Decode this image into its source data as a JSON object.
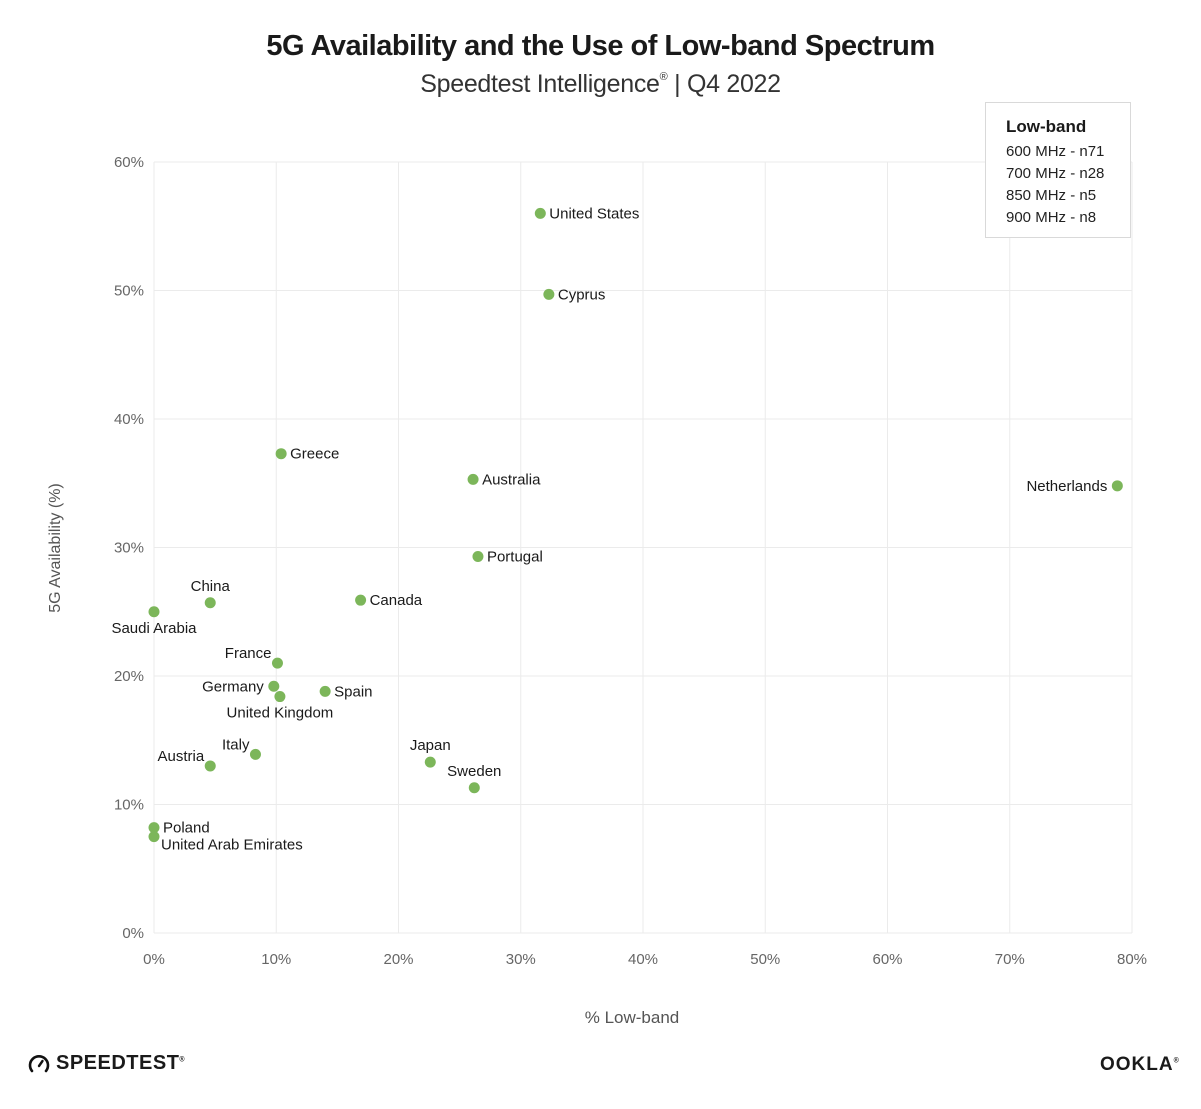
{
  "header": {
    "title": "5G Availability and the Use of Low-band Spectrum",
    "subtitle": "Speedtest Intelligence",
    "subtitle_reg": "®",
    "subtitle_suffix": " | Q4 2022"
  },
  "legend": {
    "title": "Low-band",
    "items": [
      "600 MHz - n71",
      "700 MHz - n28",
      "850 MHz - n5",
      "900 MHz - n8"
    ]
  },
  "footer": {
    "left_brand": "SPEEDTEST",
    "left_reg": "®",
    "right_brand": "OOKLA",
    "right_reg": "®"
  },
  "colors": {
    "point": "#7cb65a",
    "grid": "#ebebeb",
    "tick_text": "#666666",
    "label_text": "#1a1a1a"
  },
  "chart_data": {
    "type": "scatter",
    "title": "5G Availability and the Use of Low-band Spectrum",
    "subtitle": "Speedtest Intelligence® | Q4 2022",
    "xlabel": "% Low-band",
    "ylabel": "5G Availability (%)",
    "xlim": [
      0,
      80
    ],
    "ylim": [
      0,
      60
    ],
    "xticks": [
      0,
      10,
      20,
      30,
      40,
      50,
      60,
      70,
      80
    ],
    "yticks": [
      0,
      10,
      20,
      30,
      40,
      50,
      60
    ],
    "xtick_labels": [
      "0%",
      "10%",
      "20%",
      "30%",
      "40%",
      "50%",
      "60%",
      "70%",
      "80%"
    ],
    "ytick_labels": [
      "0%",
      "10%",
      "20%",
      "30%",
      "40%",
      "50%",
      "60%"
    ],
    "grid": true,
    "legend_position": "top-right",
    "points": [
      {
        "label": "United States",
        "x": 31.6,
        "y": 56.0,
        "anchor": "right"
      },
      {
        "label": "Cyprus",
        "x": 32.3,
        "y": 49.7,
        "anchor": "right"
      },
      {
        "label": "Greece",
        "x": 10.4,
        "y": 37.3,
        "anchor": "right"
      },
      {
        "label": "Australia",
        "x": 26.1,
        "y": 35.3,
        "anchor": "right"
      },
      {
        "label": "Netherlands",
        "x": 78.8,
        "y": 34.8,
        "anchor": "left"
      },
      {
        "label": "Portugal",
        "x": 26.5,
        "y": 29.3,
        "anchor": "right"
      },
      {
        "label": "China",
        "x": 4.6,
        "y": 25.7,
        "anchor": "above"
      },
      {
        "label": "Canada",
        "x": 16.9,
        "y": 25.9,
        "anchor": "right"
      },
      {
        "label": "Saudi Arabia",
        "x": 0.0,
        "y": 25.0,
        "anchor": "below"
      },
      {
        "label": "France",
        "x": 10.1,
        "y": 21.0,
        "anchor": "above-left"
      },
      {
        "label": "Germany",
        "x": 9.8,
        "y": 19.2,
        "anchor": "left"
      },
      {
        "label": "United Kingdom",
        "x": 10.3,
        "y": 18.4,
        "anchor": "below"
      },
      {
        "label": "Spain",
        "x": 14.0,
        "y": 18.8,
        "anchor": "right"
      },
      {
        "label": "Italy",
        "x": 8.3,
        "y": 13.9,
        "anchor": "above-left"
      },
      {
        "label": "Austria",
        "x": 4.6,
        "y": 13.0,
        "anchor": "above-left"
      },
      {
        "label": "Japan",
        "x": 22.6,
        "y": 13.3,
        "anchor": "above"
      },
      {
        "label": "Sweden",
        "x": 26.2,
        "y": 11.3,
        "anchor": "above"
      },
      {
        "label": "Poland",
        "x": 0.0,
        "y": 8.2,
        "anchor": "right"
      },
      {
        "label": "United Arab Emirates",
        "x": 0.0,
        "y": 7.5,
        "anchor": "below-right"
      }
    ]
  }
}
